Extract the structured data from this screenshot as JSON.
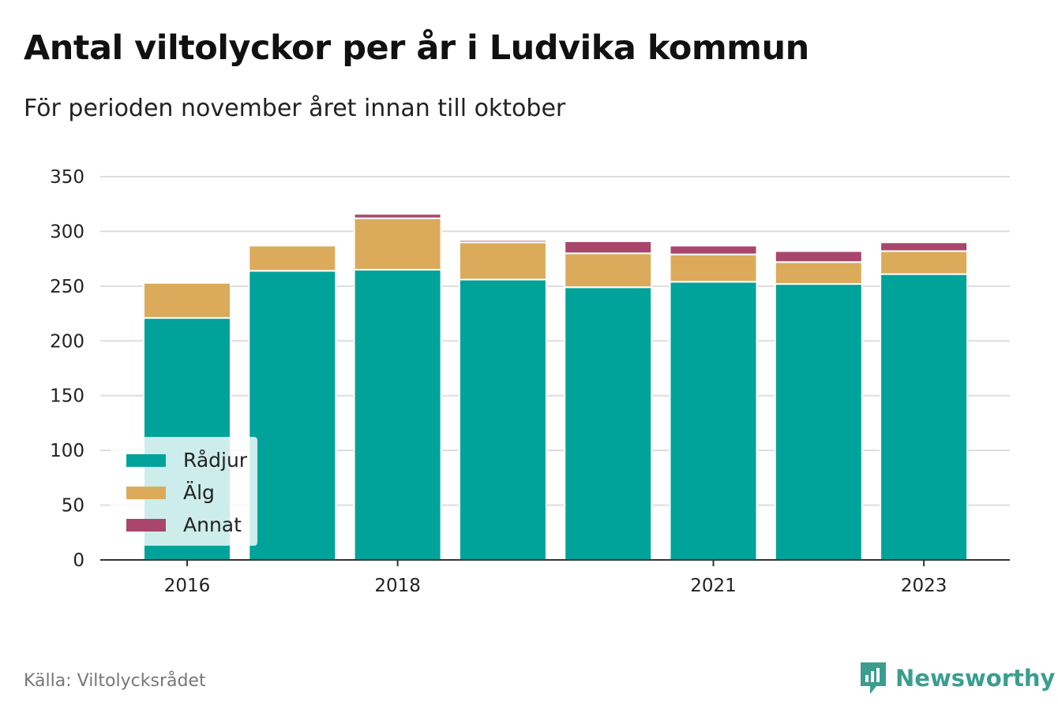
{
  "title": "Antal viltolyckor per år i Ludvika kommun",
  "subtitle": "För perioden november året innan till oktober",
  "source": "Källa: Viltolycksrådet",
  "brand": {
    "name": "Newsworthy",
    "icon": "newsworthy-logo-icon",
    "color": "#3a9e8f"
  },
  "chart_data": {
    "type": "bar",
    "stacked": true,
    "categories": [
      "2016",
      "2017",
      "2018",
      "2019",
      "2020",
      "2021",
      "2022",
      "2023"
    ],
    "x_tick_labels": [
      "2016",
      "",
      "2018",
      "",
      "",
      "2021",
      "",
      "2023"
    ],
    "series": [
      {
        "name": "Rådjur",
        "color": "#00a39a",
        "values": [
          221,
          264,
          265,
          256,
          249,
          254,
          252,
          261
        ]
      },
      {
        "name": "Älg",
        "color": "#dbab5b",
        "values": [
          32,
          23,
          47,
          34,
          31,
          25,
          20,
          21
        ]
      },
      {
        "name": "Annat",
        "color": "#a8466c",
        "values": [
          0,
          0,
          4,
          2,
          11,
          8,
          10,
          8
        ]
      }
    ],
    "ylim": [
      0,
      350
    ],
    "yticks": [
      0,
      50,
      100,
      150,
      200,
      250,
      300,
      350
    ],
    "grid": true,
    "legend_position": "bottom-left"
  }
}
